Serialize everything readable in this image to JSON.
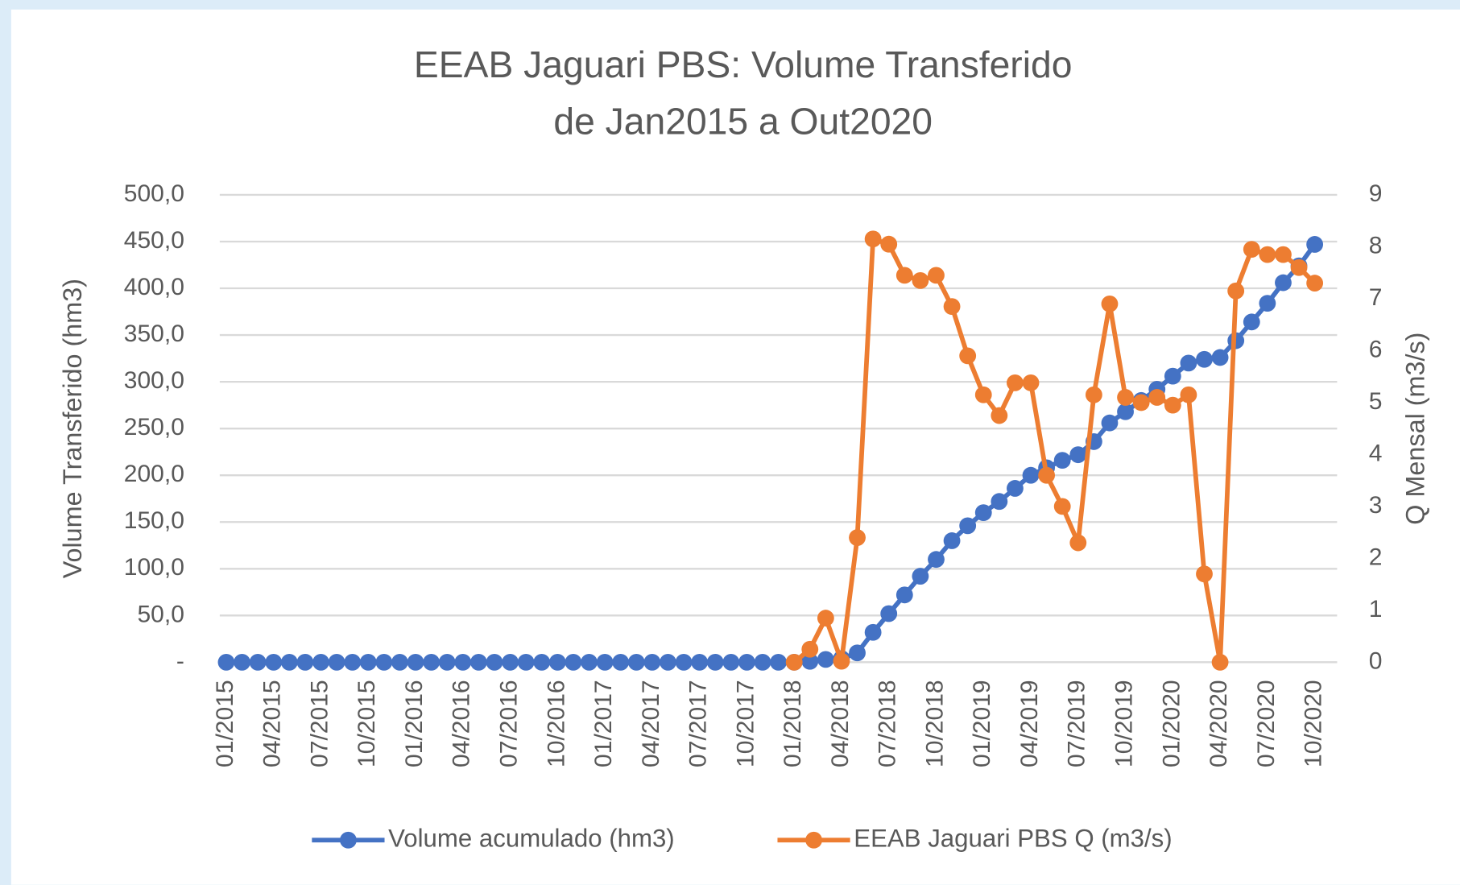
{
  "chart_data": {
    "type": "line",
    "title": [
      "EEAB Jaguari PBS: Volume Transferido",
      "de Jan2015 a Out2020"
    ],
    "ylabel": "Volume Transferido (hm3)",
    "y2label": "Q Mensal (m3/s)",
    "categories": [
      "01/2015",
      null,
      null,
      "04/2015",
      null,
      null,
      "07/2015",
      null,
      null,
      "10/2015",
      null,
      null,
      "01/2016",
      null,
      null,
      "04/2016",
      null,
      null,
      "07/2016",
      null,
      null,
      "10/2016",
      null,
      null,
      "01/2017",
      null,
      null,
      "04/2017",
      null,
      null,
      "07/2017",
      null,
      null,
      "10/2017",
      null,
      null,
      "01/2018",
      null,
      null,
      "04/2018",
      null,
      null,
      "07/2018",
      null,
      null,
      "10/2018",
      null,
      null,
      "01/2019",
      null,
      null,
      "04/2019",
      null,
      null,
      "07/2019",
      null,
      null,
      "10/2019",
      null,
      null,
      "01/2020",
      null,
      null,
      "04/2020",
      null,
      null,
      "07/2020",
      null,
      null,
      "10/2020"
    ],
    "series": [
      {
        "name": "Volume acumulado (hm3)",
        "color": "#4472c4",
        "axis": "y",
        "values": [
          0,
          0,
          0,
          0,
          0,
          0,
          0,
          0,
          0,
          0,
          0,
          0,
          0,
          0,
          0,
          0,
          0,
          0,
          0,
          0,
          0,
          0,
          0,
          0,
          0,
          0,
          0,
          0,
          0,
          0,
          0,
          0,
          0,
          0,
          0,
          0,
          0,
          1,
          3,
          4,
          10,
          32,
          52,
          72,
          92,
          110,
          130,
          146,
          160,
          172,
          186,
          200,
          208,
          216,
          222,
          236,
          256,
          268,
          280,
          292,
          306,
          320,
          324,
          326,
          344,
          364,
          384,
          406,
          424,
          447
        ]
      },
      {
        "name": "EEAB Jaguari PBS Q (m3/s)",
        "color": "#ed7d31",
        "axis": "y2",
        "values": [
          null,
          null,
          null,
          null,
          null,
          null,
          null,
          null,
          null,
          null,
          null,
          null,
          null,
          null,
          null,
          null,
          null,
          null,
          null,
          null,
          null,
          null,
          null,
          null,
          null,
          null,
          null,
          null,
          null,
          null,
          null,
          null,
          null,
          null,
          null,
          null,
          0,
          0.25,
          0.85,
          0.02,
          2.4,
          8.15,
          8.05,
          7.45,
          7.35,
          7.45,
          6.85,
          5.9,
          5.15,
          4.75,
          5.38,
          5.38,
          3.6,
          3.0,
          2.3,
          5.15,
          6.9,
          5.1,
          5.0,
          5.1,
          4.95,
          5.15,
          1.7,
          0,
          7.15,
          7.95,
          7.85,
          7.85,
          7.6,
          7.3
        ]
      }
    ],
    "ylim": [
      0,
      500
    ],
    "yticks": [
      {
        "value": 0,
        "label": "-"
      },
      {
        "value": 50,
        "label": "50,0"
      },
      {
        "value": 100,
        "label": "100,0"
      },
      {
        "value": 150,
        "label": "150,0"
      },
      {
        "value": 200,
        "label": "200,0"
      },
      {
        "value": 250,
        "label": "250,0"
      },
      {
        "value": 300,
        "label": "300,0"
      },
      {
        "value": 350,
        "label": "350,0"
      },
      {
        "value": 400,
        "label": "400,0"
      },
      {
        "value": 450,
        "label": "450,0"
      },
      {
        "value": 500,
        "label": "500,0"
      }
    ],
    "y2lim": [
      0,
      9
    ],
    "y2ticks": [
      0,
      1,
      2,
      3,
      4,
      5,
      6,
      7,
      8,
      9
    ],
    "grid": true,
    "legend": "bottom"
  }
}
